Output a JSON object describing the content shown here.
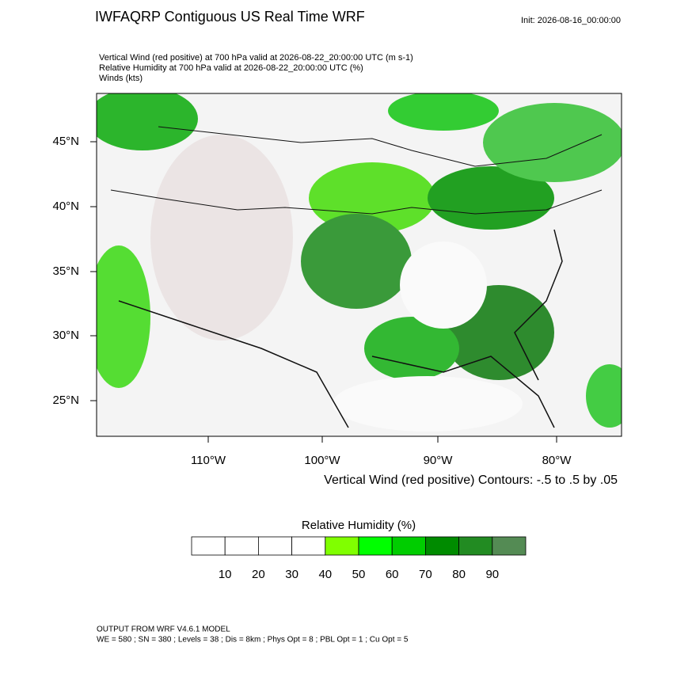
{
  "header": {
    "title": "IWFAQRP Contiguous US Real Time WRF",
    "init": "Init: 2026-08-16_00:00:00"
  },
  "description": [
    "Vertical Wind (red positive) at 700 hPa valid at 2026-08-22_20:00:00 UTC   (m s-1)",
    "Relative Humidity at 700 hPa valid at 2026-08-22_20:00:00 UTC   (%)",
    "Winds   (kts)"
  ],
  "map": {
    "lat_labels": [
      "45°N",
      "40°N",
      "35°N",
      "30°N",
      "25°N"
    ],
    "lon_labels": [
      "110°W",
      "100°W",
      "90°W",
      "80°W"
    ],
    "contour_note": "Vertical Wind (red positive) Contours: -.5 to .5 by .05"
  },
  "colorbar": {
    "title": "Relative Humidity  (%)",
    "labels": [
      10,
      20,
      30,
      40,
      50,
      60,
      70,
      80,
      90
    ],
    "colors": [
      "#ffffff",
      "#ffffff",
      "#ffffff",
      "#ffffff",
      "#80ff00",
      "#00ff00",
      "#00cd00",
      "#008b00",
      "#228b22",
      "#548b54"
    ]
  },
  "footer": [
    "OUTPUT FROM WRF V4.6.1 MODEL",
    "WE = 580 ; SN = 380 ; Levels = 38 ; Dis = 8km ; Phys Opt = 8 ; PBL Opt = 1 ; Cu Opt = 5"
  ]
}
